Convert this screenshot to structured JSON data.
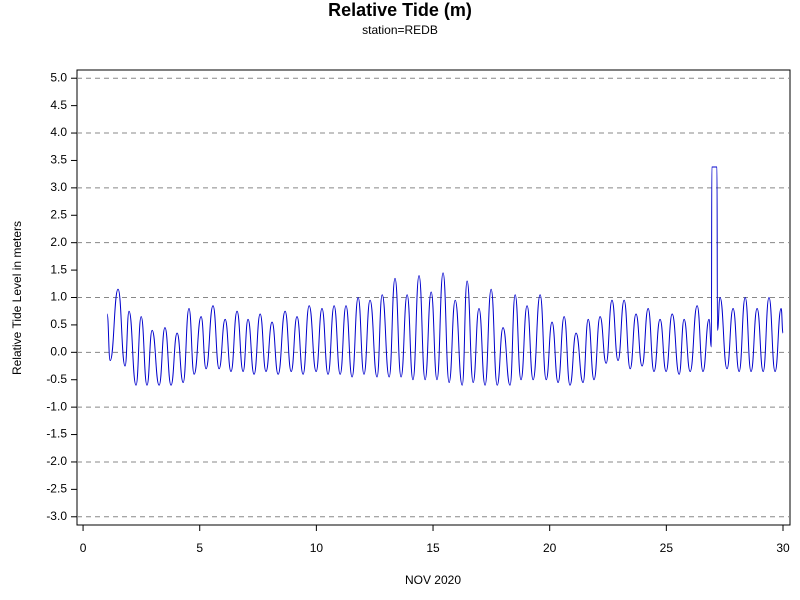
{
  "chart_data": {
    "type": "line",
    "title": "Relative Tide (m)",
    "subtitle": "station=REDB",
    "x_label": "NOV 2020",
    "y_label": "Relative Tide Level in meters",
    "xlim": [
      -0.26,
      30.3
    ],
    "xticks": [
      0,
      5,
      10,
      15,
      20,
      25,
      30
    ],
    "ylim": [
      -3.15,
      5.15
    ],
    "yticks": [
      {
        "value": -3,
        "label": "-3.0"
      },
      -2.5,
      {
        "value": -2,
        "label": "-2.0"
      },
      -1.5,
      {
        "value": -1,
        "label": "-1.0"
      },
      -0.5,
      {
        "value": 0,
        "label": "0.0"
      },
      0.5,
      {
        "value": 1,
        "label": "1.0"
      },
      1.5,
      {
        "value": 2,
        "label": "2.0"
      },
      2.5,
      {
        "value": 3,
        "label": "3.0"
      },
      3.5,
      {
        "value": 4,
        "label": "4.0"
      },
      4.5,
      {
        "value": 5,
        "label": "5.0"
      }
    ],
    "grid_lines": [
      -3,
      -2,
      -1,
      0,
      1,
      2,
      3,
      4,
      5
    ],
    "series": [
      {
        "color": "#0000cc",
        "x": [
          1.03,
          1.16,
          1.5,
          1.8,
          1.97,
          2.27,
          2.49,
          2.74,
          2.96,
          3.26,
          3.51,
          3.77,
          4.03,
          4.29,
          4.54,
          4.76,
          5.06,
          5.27,
          5.57,
          5.83,
          6.09,
          6.34,
          6.6,
          6.86,
          7.07,
          7.33,
          7.59,
          7.84,
          8.1,
          8.36,
          8.66,
          8.92,
          9.17,
          9.43,
          9.69,
          9.99,
          10.24,
          10.5,
          10.76,
          11.02,
          11.27,
          11.53,
          11.79,
          12.04,
          12.3,
          12.6,
          12.82,
          13.12,
          13.37,
          13.63,
          13.89,
          14.14,
          14.4,
          14.66,
          14.92,
          15.17,
          15.43,
          15.69,
          15.95,
          16.25,
          16.46,
          16.72,
          16.97,
          17.23,
          17.49,
          17.75,
          18.0,
          18.3,
          18.52,
          18.77,
          19.03,
          19.29,
          19.59,
          19.85,
          20.1,
          20.36,
          20.62,
          20.87,
          21.13,
          21.43,
          21.65,
          21.9,
          22.16,
          22.42,
          22.67,
          22.93,
          23.19,
          23.45,
          23.7,
          23.96,
          24.22,
          24.47,
          24.73,
          24.99,
          25.25,
          25.55,
          25.76,
          26.02,
          26.32,
          26.57,
          26.83,
          26.93,
          26.95,
          27.17,
          27.19,
          27.3,
          27.6,
          27.86,
          28.12,
          28.38,
          28.63,
          28.89,
          29.15,
          29.4,
          29.66,
          29.92,
          30.0
        ],
        "values": [
          0.7,
          -0.15,
          1.15,
          -0.25,
          0.75,
          -0.6,
          0.65,
          -0.6,
          0.4,
          -0.6,
          0.45,
          -0.6,
          0.35,
          -0.55,
          0.8,
          -0.4,
          0.65,
          -0.3,
          0.85,
          -0.3,
          0.6,
          -0.35,
          0.75,
          -0.35,
          0.6,
          -0.4,
          0.7,
          -0.35,
          0.55,
          -0.4,
          0.75,
          -0.35,
          0.65,
          -0.4,
          0.85,
          -0.35,
          0.8,
          -0.4,
          0.85,
          -0.4,
          0.85,
          -0.45,
          1.0,
          -0.4,
          0.95,
          -0.45,
          1.05,
          -0.45,
          1.35,
          -0.45,
          1.05,
          -0.5,
          1.4,
          -0.5,
          1.1,
          -0.5,
          1.45,
          -0.55,
          0.95,
          -0.6,
          1.3,
          -0.55,
          0.8,
          -0.6,
          1.15,
          -0.6,
          0.45,
          -0.6,
          1.05,
          -0.5,
          0.85,
          -0.5,
          1.05,
          -0.5,
          0.55,
          -0.55,
          0.65,
          -0.6,
          0.35,
          -0.55,
          0.6,
          -0.5,
          0.65,
          -0.2,
          0.95,
          -0.15,
          0.95,
          -0.3,
          0.7,
          -0.25,
          0.8,
          -0.35,
          0.6,
          -0.35,
          0.7,
          -0.4,
          0.6,
          -0.35,
          0.85,
          -0.35,
          0.6,
          0.1,
          3.38,
          3.38,
          0.4,
          1.0,
          -0.3,
          0.8,
          -0.35,
          1.0,
          -0.35,
          0.8,
          -0.35,
          1.0,
          -0.35,
          0.8,
          0.35
        ]
      }
    ]
  }
}
